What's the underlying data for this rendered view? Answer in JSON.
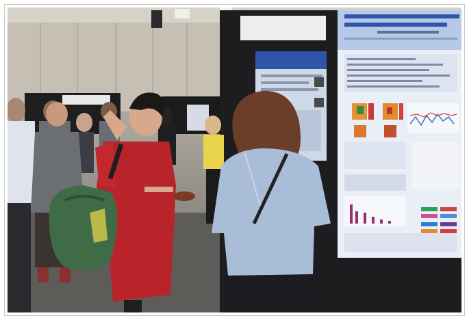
{
  "photo": {
    "scene": "poster-session",
    "colors": {
      "wall": "#c6c0b4",
      "floor": "#5e5c58",
      "board": "#1d1d1f",
      "poster_bg": "#e9eef7",
      "poster_header": "#2d56a8",
      "red_dress": "#b8242a",
      "blue_shirt": "#a9bdd8",
      "green_bag": "#3f6b47",
      "hair_brown": "#6a3e28",
      "hair_black": "#1b1816"
    }
  }
}
